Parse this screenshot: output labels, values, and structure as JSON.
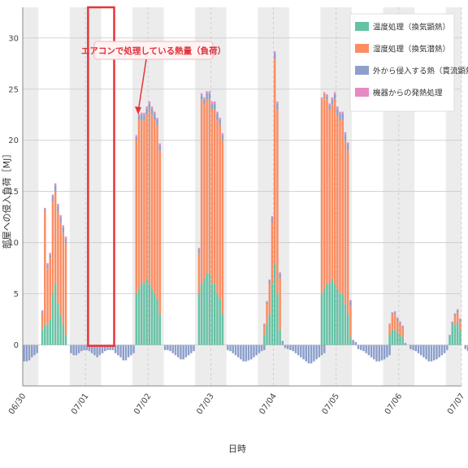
{
  "chart_data": {
    "type": "bar",
    "stacked": true,
    "xlabel": "日時",
    "ylabel": "部屋への侵入負荷［MJ］",
    "ylim": [
      -4,
      33
    ],
    "yticks": [
      0,
      5,
      10,
      15,
      20,
      25,
      30
    ],
    "x_start": "06/30 00:00",
    "x_end": "07/07 00:00",
    "hours_per_bar": 1,
    "xtick_labels": [
      "06/30",
      "07/01",
      "07/02",
      "07/03",
      "07/04",
      "07/05",
      "07/06",
      "07/07"
    ],
    "grid": true,
    "legend_position": "top-right",
    "legend": [
      {
        "label": "温度処理（換気顕熱）",
        "color": "#66c2a5"
      },
      {
        "label": "湿度処理（換気潜熱）",
        "color": "#fc8d62"
      },
      {
        "label": "外から侵入する熱（貫流顕熱）",
        "color": "#8da0cb"
      },
      {
        "label": "機器からの発熱処理",
        "color": "#e78ac3"
      }
    ],
    "series_colors": {
      "sensible": "#66c2a5",
      "latent": "#fc8d62",
      "transmission": "#8da0cb",
      "equipment": "#e78ac3"
    },
    "shaded_hour_ranges": [
      [
        0,
        6
      ],
      [
        18,
        30
      ],
      [
        42,
        54
      ],
      [
        66,
        78
      ],
      [
        90,
        102
      ],
      [
        114,
        126
      ],
      [
        138,
        150
      ],
      [
        162,
        168
      ]
    ],
    "hourly": {
      "sensible": [
        0,
        0,
        0,
        0,
        0,
        0,
        0,
        1.5,
        2,
        2,
        2.5,
        5,
        6,
        4,
        3,
        2,
        1,
        0,
        0,
        0,
        0,
        0,
        0,
        0,
        0,
        0,
        0,
        0,
        0,
        0,
        0,
        0,
        0,
        0,
        0,
        0,
        0,
        0,
        0,
        0,
        0,
        0,
        0,
        5,
        5.5,
        6,
        6,
        6.5,
        6,
        5.5,
        5,
        4.5,
        3,
        0,
        0,
        0,
        0,
        0,
        0,
        0,
        0,
        0,
        0,
        0,
        0,
        0,
        0,
        5,
        6,
        6.5,
        7,
        7,
        6,
        6,
        5,
        4.5,
        3,
        0,
        0,
        0,
        0,
        0,
        0,
        0,
        0,
        0,
        0,
        0,
        0,
        0,
        0,
        0,
        1,
        2,
        3,
        6,
        8,
        5,
        1.5,
        0,
        0,
        0,
        0,
        0,
        0,
        0,
        0,
        0,
        0,
        0,
        0,
        0,
        0,
        0,
        5,
        5.5,
        6,
        6,
        6.5,
        6,
        5.5,
        5,
        5,
        4,
        3,
        0.8,
        0,
        0,
        0,
        0,
        0,
        0,
        0,
        0,
        0,
        0,
        0,
        0,
        0,
        0,
        1,
        1.5,
        1.5,
        1.2,
        1,
        0.8,
        0,
        0,
        0,
        0,
        0,
        0,
        0,
        0,
        0,
        0,
        0,
        0,
        0,
        0,
        0,
        0,
        0,
        0.8,
        2,
        2,
        2.2,
        1.5,
        0,
        0,
        0,
        0,
        0,
        0,
        0,
        0
      ],
      "latent": [
        0,
        0,
        0,
        0,
        0,
        0,
        0,
        1.5,
        11,
        5.5,
        6,
        9,
        9,
        9,
        9,
        9,
        9,
        0,
        0,
        0,
        0,
        0,
        0,
        0,
        0,
        0,
        0,
        0,
        0,
        0,
        0,
        0,
        0,
        0,
        0,
        0,
        0,
        0,
        0,
        0,
        0,
        0,
        0,
        15,
        16.5,
        16,
        16,
        16,
        17,
        17,
        17,
        17,
        16,
        0,
        0,
        0,
        0,
        0,
        0,
        0,
        0,
        0,
        0,
        0,
        0,
        0,
        0,
        4,
        18,
        17,
        17,
        17,
        17,
        17,
        17,
        17,
        17,
        0,
        0,
        0,
        0,
        0,
        0,
        0,
        0,
        0,
        0,
        0,
        0,
        0,
        0,
        0,
        1,
        2,
        3,
        6,
        20,
        18,
        5,
        0,
        0,
        0,
        0,
        0,
        0,
        0,
        0,
        0,
        0,
        0,
        0,
        0,
        0,
        0,
        19,
        19,
        18,
        17,
        17,
        18,
        17,
        17,
        17,
        16,
        16,
        3,
        0,
        0,
        0,
        0,
        0,
        0,
        0,
        0,
        0,
        0,
        0,
        0,
        0,
        0,
        1,
        1.5,
        1.5,
        1.2,
        1,
        0.8,
        0,
        0,
        0,
        0,
        0,
        0,
        0,
        0,
        0,
        0,
        0,
        0,
        0,
        0,
        0,
        0,
        0,
        0,
        0,
        0.8,
        1,
        0.8,
        0,
        0,
        0,
        0,
        0,
        0,
        0,
        0
      ],
      "transmission": [
        -1.6,
        -1.6,
        -1.5,
        -1.2,
        -1,
        -0.8,
        0,
        0.2,
        0.2,
        0.3,
        0.3,
        0.5,
        0.6,
        0.6,
        0.5,
        0.5,
        0.4,
        0,
        -0.8,
        -1,
        -1,
        -0.8,
        -0.6,
        -0.5,
        -0.5,
        -0.6,
        -0.8,
        -1,
        -1.2,
        -1,
        -0.8,
        -0.6,
        -0.5,
        -0.5,
        -0.5,
        -0.8,
        -1,
        -1.2,
        -1.5,
        -1.5,
        -1.2,
        -1,
        -0.8,
        0.3,
        0.4,
        0.5,
        0.5,
        0.6,
        0.6,
        0.6,
        0.6,
        0.5,
        0.5,
        0,
        -0.5,
        -0.5,
        -0.6,
        -0.8,
        -1,
        -1.2,
        -1.4,
        -1.4,
        -1.2,
        -1,
        -0.8,
        -0.6,
        0,
        0.3,
        0.4,
        0.5,
        0.6,
        0.6,
        0.6,
        0.6,
        0.6,
        0.5,
        0.5,
        0,
        -0.5,
        -0.6,
        -0.8,
        -1,
        -1.2,
        -1.4,
        -1.6,
        -1.6,
        -1.5,
        -1.4,
        -1.2,
        -1,
        -0.8,
        -0.6,
        -0.5,
        0.2,
        0.3,
        0.4,
        0.5,
        0.6,
        0.5,
        0.4,
        -0.3,
        -0.4,
        -0.5,
        -0.6,
        -0.8,
        -1,
        -1.2,
        -1.4,
        -1.6,
        -1.8,
        -1.8,
        -1.6,
        -1.4,
        -1.2,
        -1,
        -0.8,
        0.3,
        0.4,
        0.5,
        0.5,
        0.6,
        0.6,
        0.6,
        0.6,
        0.6,
        0.5,
        0.5,
        0.3,
        -0.4,
        -0.5,
        -0.6,
        -0.8,
        -1,
        -1.2,
        -1.4,
        -1.6,
        -1.6,
        -1.5,
        -1.4,
        -1.2,
        -1,
        0.1,
        0.2,
        0.2,
        0.2,
        0.2,
        0.2,
        0,
        -0.4,
        -0.5,
        -0.6,
        -0.8,
        -1,
        -1.2,
        -1.4,
        -1.6,
        -1.6,
        -1.5,
        -1.4,
        -1.2,
        -1,
        -0.8,
        -0.5,
        0.1,
        0.2,
        0.2,
        0.2,
        0.2,
        0,
        -0.4,
        -0.6,
        -0.8,
        -1,
        -1.2,
        -1.4,
        -1.6,
        -1.8
      ],
      "equipment": [
        0,
        0,
        0,
        0,
        0,
        0,
        0,
        0.2,
        0.2,
        0.2,
        0.2,
        0.2,
        0.2,
        0.2,
        0.2,
        0.2,
        0.2,
        0,
        0,
        0,
        0,
        0,
        0,
        0,
        0,
        0,
        0,
        0,
        0,
        0,
        0,
        0,
        0,
        0,
        0,
        0,
        0,
        0,
        0,
        0,
        0,
        0,
        0,
        0.2,
        0.2,
        0.2,
        0.2,
        0.2,
        0.2,
        0.2,
        0.2,
        0.2,
        0.2,
        0,
        0,
        0,
        0,
        0,
        0,
        0,
        0,
        0,
        0,
        0,
        0,
        0,
        0,
        0.2,
        0.2,
        0.2,
        0.2,
        0.2,
        0.2,
        0.2,
        0.2,
        0.2,
        0.2,
        0,
        0,
        0,
        0,
        0,
        0,
        0,
        0,
        0,
        0,
        0,
        0,
        0,
        0,
        0,
        0.1,
        0.1,
        0.1,
        0.2,
        0.2,
        0.2,
        0.1,
        0,
        0,
        0,
        0,
        0,
        0,
        0,
        0,
        0,
        0,
        0,
        0,
        0,
        0,
        0,
        0.2,
        0.2,
        0.2,
        0.2,
        0.2,
        0.2,
        0.2,
        0.2,
        0.2,
        0.2,
        0.2,
        0.1,
        0,
        0,
        0,
        0,
        0,
        0,
        0,
        0,
        0,
        0,
        0,
        0,
        0,
        0,
        0.1,
        0.1,
        0.1,
        0.1,
        0.1,
        0.1,
        0,
        0,
        0,
        0,
        0,
        0,
        0,
        0,
        0,
        0,
        0,
        0,
        0,
        0,
        0,
        0,
        0,
        0.1,
        0.1,
        0.1,
        0.1,
        0.1,
        0,
        0,
        0,
        0,
        0,
        0,
        0,
        0
      ]
    },
    "annotation": {
      "text": "エアコンで処理している熱量（負荷）",
      "highlight_hours": [
        25,
        35
      ]
    }
  }
}
